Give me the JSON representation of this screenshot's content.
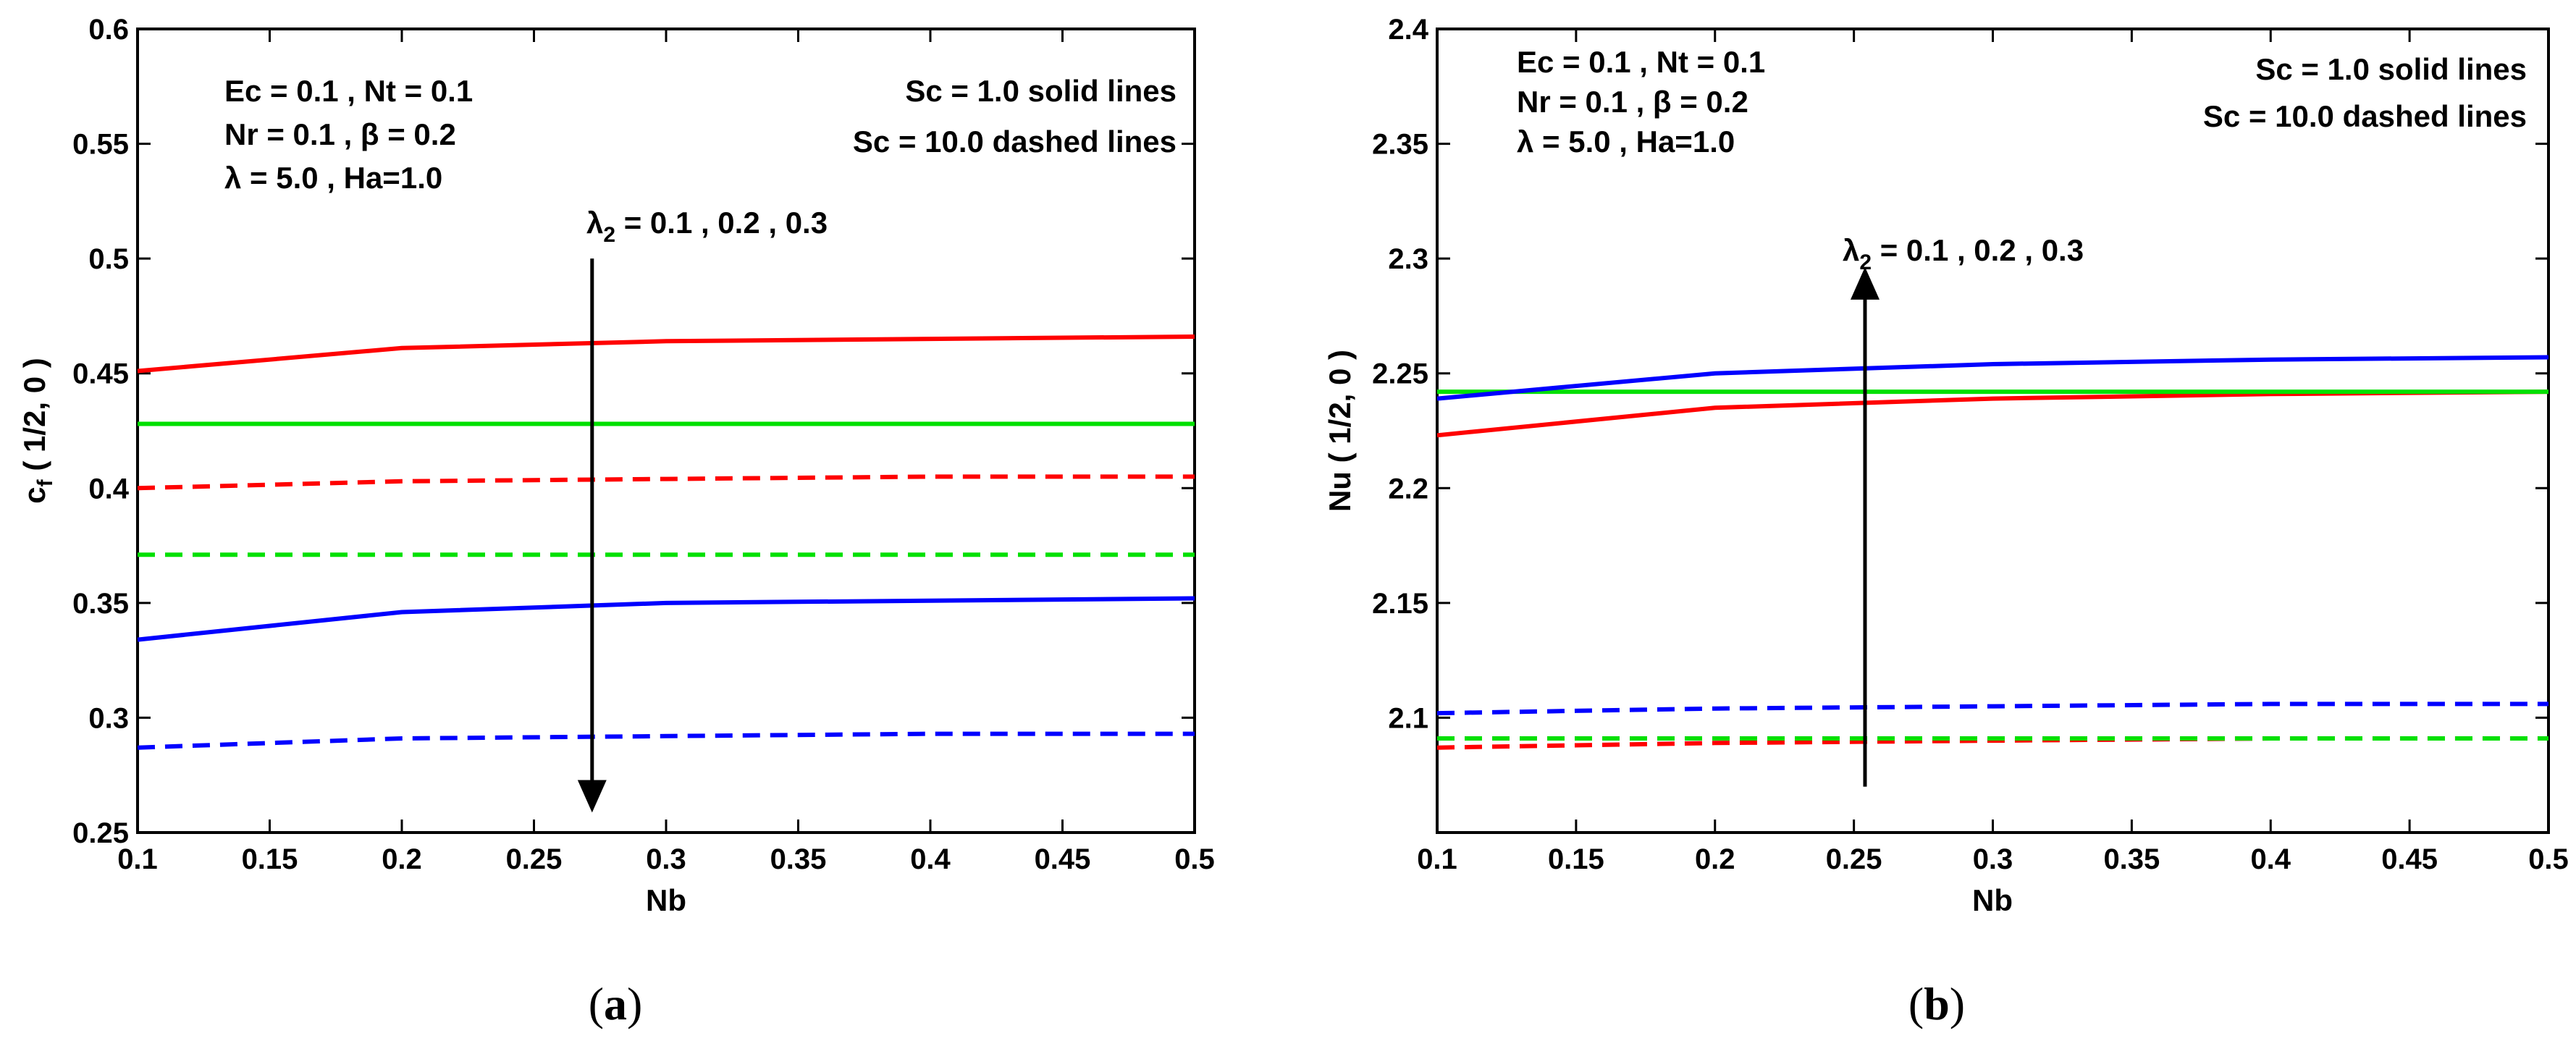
{
  "figure": {
    "panels": [
      {
        "caption": {
          "open": "(",
          "letter": "a",
          "close": ")"
        },
        "ylabel_main": "c",
        "ylabel_sub": "f",
        "ylabel_rest": " ( 1/2, 0 )",
        "params": [
          {
            "lines": [
              [
                "Ec = 0.1 , Nt = 0.1"
              ]
            ]
          },
          {
            "lines": [
              [
                "Nr = 0.1 , β = 0.2"
              ]
            ]
          },
          {
            "lines": [
              [
                "λ = 5.0 , Ha=1.0"
              ]
            ]
          }
        ],
        "legend_notes": [
          "Sc = 1.0 solid lines",
          "Sc = 10.0 dashed lines"
        ],
        "arrow_label": {
          "main": "λ",
          "sub": "2",
          "rest": " = 0.1 , 0.2 , 0.3"
        },
        "arrow_direction": "down"
      },
      {
        "caption": {
          "open": "(",
          "letter": "b",
          "close": ")"
        },
        "ylabel_main": "Nu",
        "ylabel_sub": "",
        "ylabel_rest": " ( 1/2, 0 )",
        "params": [
          {
            "lines": [
              [
                "Ec = 0.1 , Nt = 0.1"
              ]
            ]
          },
          {
            "lines": [
              [
                "Nr = 0.1 , β = 0.2"
              ]
            ]
          },
          {
            "lines": [
              [
                "λ = 5.0 , Ha=1.0"
              ]
            ]
          }
        ],
        "legend_notes": [
          "Sc = 1.0 solid lines",
          "Sc = 10.0 dashed lines"
        ],
        "arrow_label": {
          "main": "λ",
          "sub": "2",
          "rest": " = 0.1 , 0.2 , 0.3"
        },
        "arrow_direction": "up"
      }
    ],
    "colors": {
      "red": "#ff0000",
      "green": "#00e000",
      "blue": "#0000ff",
      "axis": "#000000"
    }
  },
  "chart_data": [
    {
      "type": "line",
      "title": "",
      "xlabel": "Nb",
      "ylabel": "cf ( 1/2, 0 )",
      "xlim": [
        0.1,
        0.5
      ],
      "ylim": [
        0.25,
        0.6
      ],
      "xticks": [
        "0.1",
        "0.15",
        "0.2",
        "0.25",
        "0.3",
        "0.35",
        "0.4",
        "0.45",
        "0.5"
      ],
      "yticks": [
        "0.25",
        "0.3",
        "0.35",
        "0.4",
        "0.45",
        "0.5",
        "0.55",
        "0.6"
      ],
      "grid": false,
      "x": [
        0.1,
        0.2,
        0.3,
        0.4,
        0.5
      ],
      "series": [
        {
          "name": "λ2 = 0.1, Sc = 1.0",
          "color": "#ff0000",
          "style": "solid",
          "values": [
            0.451,
            0.461,
            0.464,
            0.465,
            0.466
          ]
        },
        {
          "name": "λ2 = 0.2, Sc = 1.0",
          "color": "#00e000",
          "style": "solid",
          "values": [
            0.428,
            0.428,
            0.428,
            0.428,
            0.428
          ]
        },
        {
          "name": "λ2 = 0.3, Sc = 1.0",
          "color": "#0000ff",
          "style": "solid",
          "values": [
            0.334,
            0.346,
            0.35,
            0.351,
            0.352
          ]
        },
        {
          "name": "λ2 = 0.1, Sc = 10.0",
          "color": "#ff0000",
          "style": "dashed",
          "values": [
            0.4,
            0.403,
            0.404,
            0.405,
            0.405
          ]
        },
        {
          "name": "λ2 = 0.2, Sc = 10.0",
          "color": "#00e000",
          "style": "dashed",
          "values": [
            0.371,
            0.371,
            0.371,
            0.371,
            0.371
          ]
        },
        {
          "name": "λ2 = 0.3, Sc = 10.0",
          "color": "#0000ff",
          "style": "dashed",
          "values": [
            0.287,
            0.291,
            0.292,
            0.293,
            0.293
          ]
        }
      ],
      "arrow": {
        "x": 0.272,
        "y_from": 0.5,
        "y_to": 0.265
      }
    },
    {
      "type": "line",
      "title": "",
      "xlabel": "Nb",
      "ylabel": "Nu ( 1/2, 0 )",
      "xlim": [
        0.1,
        0.5
      ],
      "ylim": [
        2.05,
        2.4
      ],
      "xticks": [
        "0.1",
        "0.15",
        "0.2",
        "0.25",
        "0.3",
        "0.35",
        "0.4",
        "0.45",
        "0.5"
      ],
      "yticks": [
        "2.1",
        "2.15",
        "2.2",
        "2.25",
        "2.3",
        "2.35",
        "2.4"
      ],
      "grid": false,
      "x": [
        0.1,
        0.2,
        0.3,
        0.4,
        0.5
      ],
      "series": [
        {
          "name": "λ2 = 0.1, Sc = 1.0",
          "color": "#ff0000",
          "style": "solid",
          "values": [
            2.223,
            2.235,
            2.239,
            2.241,
            2.242
          ]
        },
        {
          "name": "λ2 = 0.2, Sc = 1.0",
          "color": "#00e000",
          "style": "solid",
          "values": [
            2.242,
            2.242,
            2.242,
            2.242,
            2.242
          ]
        },
        {
          "name": "λ2 = 0.3, Sc = 1.0",
          "color": "#0000ff",
          "style": "solid",
          "values": [
            2.239,
            2.25,
            2.254,
            2.256,
            2.257
          ]
        },
        {
          "name": "λ2 = 0.1, Sc = 10.0",
          "color": "#ff0000",
          "style": "dashed",
          "values": [
            2.087,
            2.089,
            2.09,
            2.091,
            2.091
          ]
        },
        {
          "name": "λ2 = 0.2, Sc = 10.0",
          "color": "#00e000",
          "style": "dashed",
          "values": [
            2.091,
            2.091,
            2.091,
            2.091,
            2.091
          ]
        },
        {
          "name": "λ2 = 0.3, Sc = 10.0",
          "color": "#0000ff",
          "style": "dashed",
          "values": [
            2.102,
            2.104,
            2.105,
            2.106,
            2.106
          ]
        }
      ],
      "arrow": {
        "x": 0.254,
        "y_from": 2.07,
        "y_to": 2.29
      }
    }
  ]
}
